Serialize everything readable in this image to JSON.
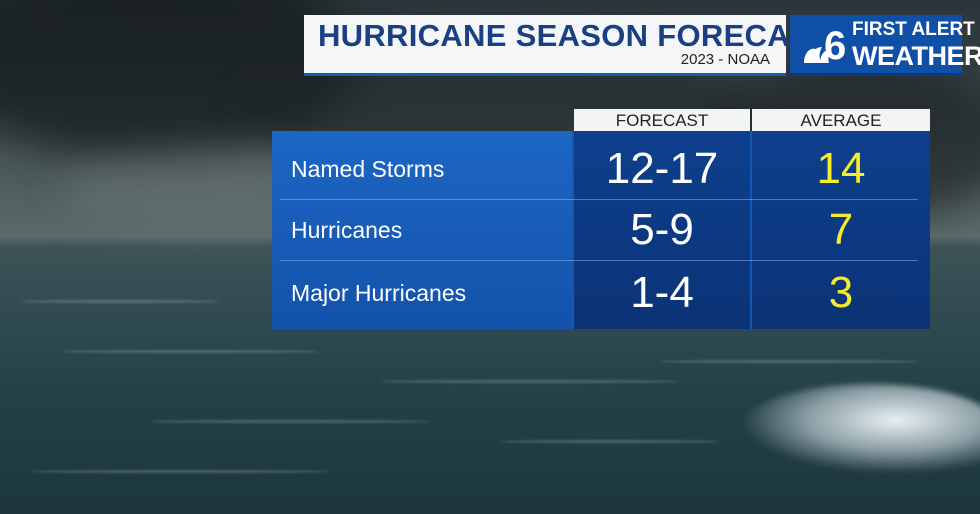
{
  "header": {
    "title": "HURRICANE SEASON FORECAST",
    "subtitle": "2023 - NOAA"
  },
  "brand": {
    "number": "6",
    "line1": "FIRST ALERT",
    "line2": "WEATHER"
  },
  "table": {
    "columns": [
      "FORECAST",
      "AVERAGE"
    ],
    "rows": [
      {
        "label": "Named Storms",
        "forecast": "12-17",
        "average": "14"
      },
      {
        "label": "Hurricanes",
        "forecast": "5-9",
        "average": "7"
      },
      {
        "label": "Major Hurricanes",
        "forecast": "1-4",
        "average": "3"
      }
    ]
  },
  "colors": {
    "title_text": "#1b3f84",
    "panel_blue": "#1458b4",
    "average_yellow": "#f6ec2a"
  }
}
